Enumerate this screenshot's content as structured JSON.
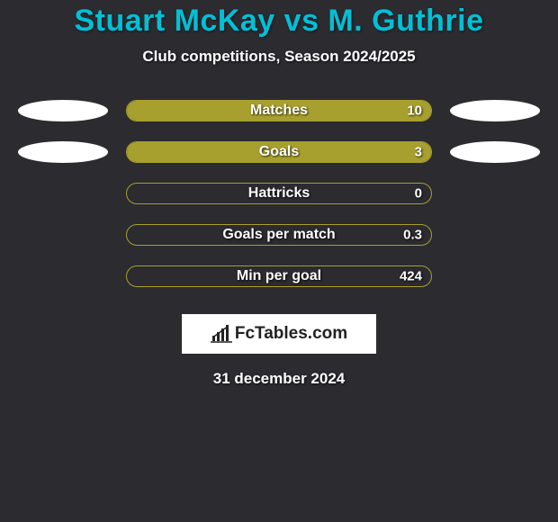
{
  "title": "Stuart McKay vs M. Guthrie",
  "subtitle": "Club competitions, Season 2024/2025",
  "date": "31 december 2024",
  "logo_text": "FcTables.com",
  "colors": {
    "background": "#2b2b30",
    "title": "#00c0d6",
    "bar_border": "#a8a02e",
    "bar_fill": "#a8a02e",
    "pill": "#ffffff",
    "text": "#ffffff"
  },
  "stats": [
    {
      "label": "Matches",
      "value": "10",
      "fill_pct": 100,
      "left_pill": true,
      "right_pill": true
    },
    {
      "label": "Goals",
      "value": "3",
      "fill_pct": 100,
      "left_pill": true,
      "right_pill": true
    },
    {
      "label": "Hattricks",
      "value": "0",
      "fill_pct": 0,
      "left_pill": false,
      "right_pill": false
    },
    {
      "label": "Goals per match",
      "value": "0.3",
      "fill_pct": 0,
      "left_pill": false,
      "right_pill": false
    },
    {
      "label": "Min per goal",
      "value": "424",
      "fill_pct": 0,
      "left_pill": false,
      "right_pill": false
    }
  ]
}
